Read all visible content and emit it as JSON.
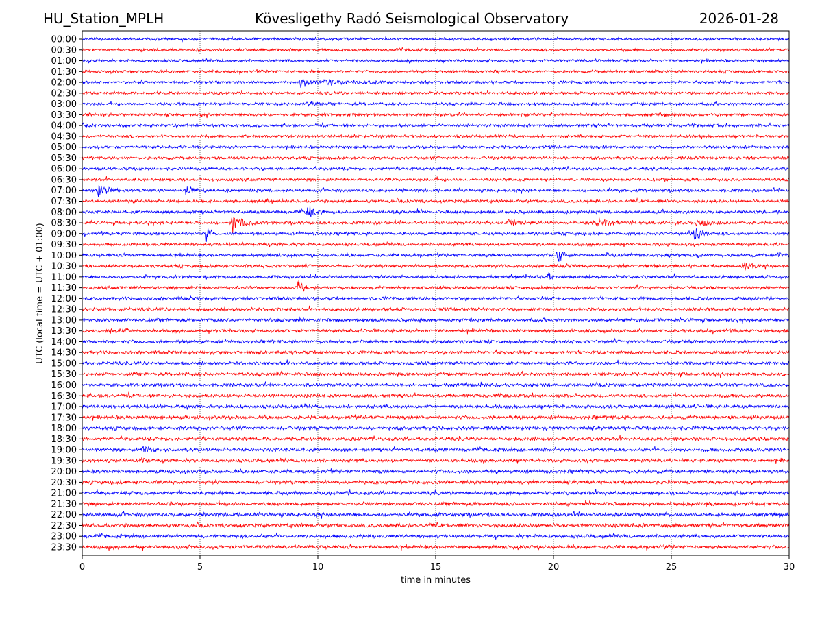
{
  "header": {
    "station": "HU_Station_MPLH",
    "observatory": "Kövesligethy Radó Seismological Observatory",
    "date": "2026-01-28"
  },
  "chart_data": {
    "type": "line",
    "subtype": "helicorder",
    "xlabel": "time in minutes",
    "ylabel": "UTC (local time = UTC + 01:00)",
    "xlim": [
      0,
      30
    ],
    "xticks": [
      "0",
      "5",
      "10",
      "15",
      "20",
      "25",
      "30"
    ],
    "xtick_values": [
      0,
      5,
      10,
      15,
      20,
      25,
      30
    ],
    "grid": "vertical dotted at x ticks",
    "row_labels": [
      "00:00",
      "00:30",
      "01:00",
      "01:30",
      "02:00",
      "02:30",
      "03:00",
      "03:30",
      "04:00",
      "04:30",
      "05:00",
      "05:30",
      "06:00",
      "06:30",
      "07:00",
      "07:30",
      "08:00",
      "08:30",
      "09:00",
      "09:30",
      "10:00",
      "10:30",
      "11:00",
      "11:30",
      "12:00",
      "12:30",
      "13:00",
      "13:30",
      "14:00",
      "14:30",
      "15:00",
      "15:30",
      "16:00",
      "16:30",
      "17:00",
      "17:30",
      "18:00",
      "18:30",
      "19:00",
      "19:30",
      "20:00",
      "20:30",
      "21:00",
      "21:30",
      "22:00",
      "22:30",
      "23:00",
      "23:30"
    ],
    "colors": [
      "#0000ff",
      "#ff0000"
    ],
    "events": [
      {
        "row": "02:00",
        "minute": 9.2,
        "duration": 1.0,
        "amplitude": 8
      },
      {
        "row": "02:00",
        "minute": 10.2,
        "duration": 3.2,
        "amplitude": 3
      },
      {
        "row": "03:00",
        "minute": 9.5,
        "duration": 0.8,
        "amplitude": 4
      },
      {
        "row": "07:00",
        "minute": 0.6,
        "duration": 1.2,
        "amplitude": 8
      },
      {
        "row": "07:00",
        "minute": 4.3,
        "duration": 1.0,
        "amplitude": 8
      },
      {
        "row": "08:00",
        "minute": 9.5,
        "duration": 0.9,
        "amplitude": 12
      },
      {
        "row": "08:30",
        "minute": 6.3,
        "duration": 1.3,
        "amplitude": 15
      },
      {
        "row": "08:30",
        "minute": 18.0,
        "duration": 1.2,
        "amplitude": 5
      },
      {
        "row": "08:30",
        "minute": 21.8,
        "duration": 1.8,
        "amplitude": 5
      },
      {
        "row": "08:30",
        "minute": 26.0,
        "duration": 1.5,
        "amplitude": 6
      },
      {
        "row": "09:00",
        "minute": 5.2,
        "duration": 0.6,
        "amplitude": 14
      },
      {
        "row": "09:00",
        "minute": 25.9,
        "duration": 0.7,
        "amplitude": 18
      },
      {
        "row": "10:00",
        "minute": 20.1,
        "duration": 0.6,
        "amplitude": 14
      },
      {
        "row": "10:00",
        "minute": 22.2,
        "duration": 0.5,
        "amplitude": 5
      },
      {
        "row": "10:00",
        "minute": 26.0,
        "duration": 0.4,
        "amplitude": 8
      },
      {
        "row": "10:00",
        "minute": 29.5,
        "duration": 0.4,
        "amplitude": 5
      },
      {
        "row": "10:30",
        "minute": 28.0,
        "duration": 0.8,
        "amplitude": 8
      },
      {
        "row": "11:00",
        "minute": 19.7,
        "duration": 0.5,
        "amplitude": 8
      },
      {
        "row": "11:30",
        "minute": 9.1,
        "duration": 0.5,
        "amplitude": 18
      },
      {
        "row": "13:30",
        "minute": 1.0,
        "duration": 1.0,
        "amplitude": 5
      },
      {
        "row": "19:00",
        "minute": 2.5,
        "duration": 0.8,
        "amplitude": 11
      },
      {
        "row": "19:30",
        "minute": 2.5,
        "duration": 0.4,
        "amplitude": 7
      }
    ]
  }
}
